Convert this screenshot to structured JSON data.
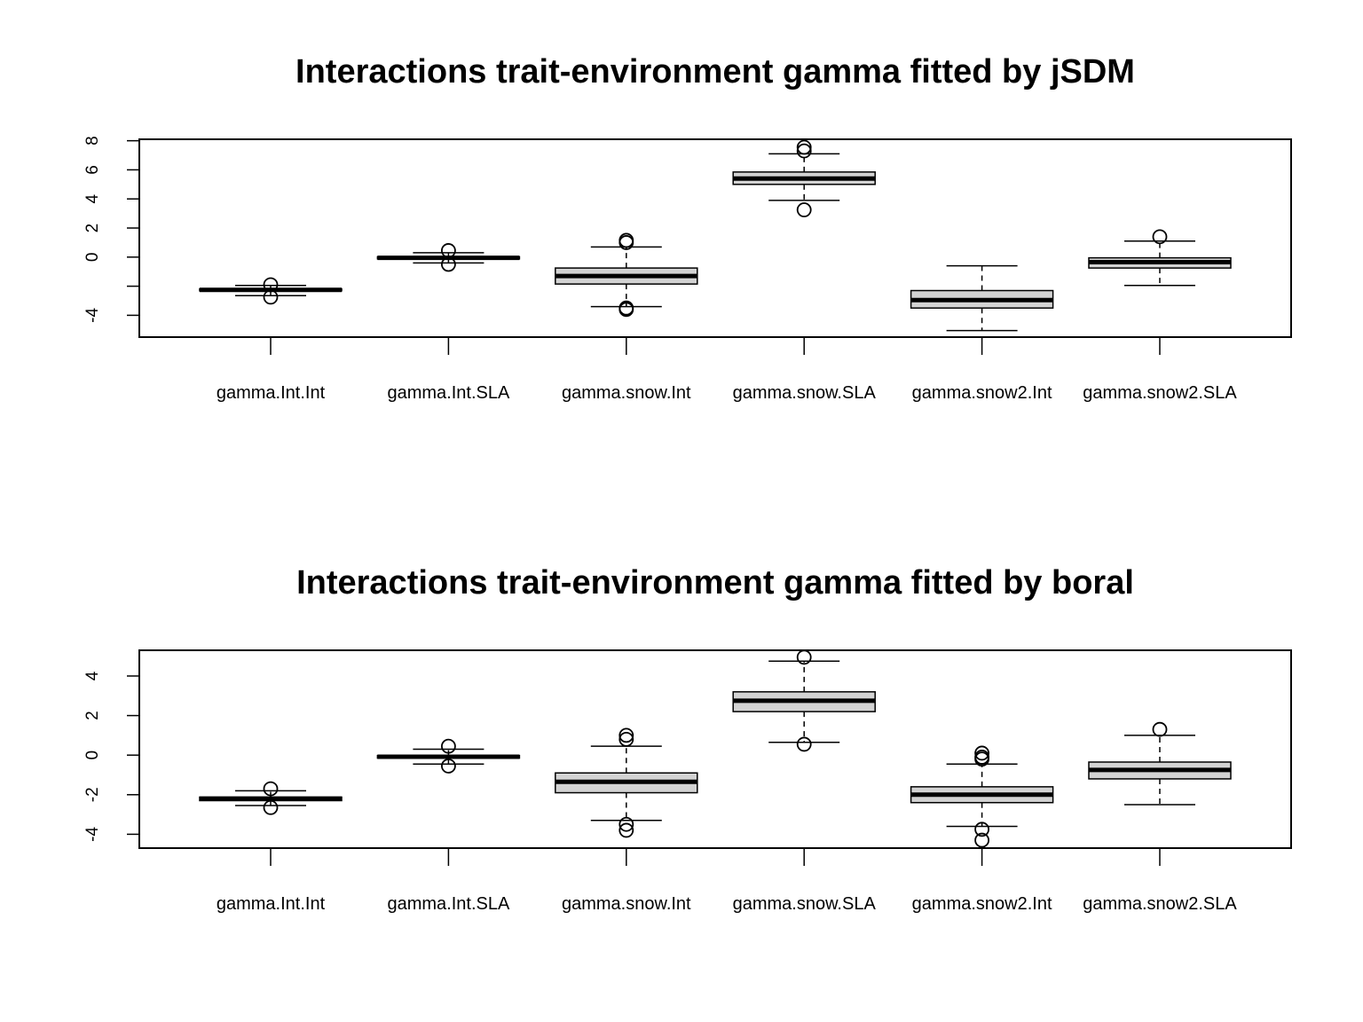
{
  "chart_data": [
    {
      "type": "box",
      "title": "Interactions trait-environment gamma fitted by jSDM",
      "xlabel": "",
      "ylabel": "",
      "categories": [
        "gamma.Int.Int",
        "gamma.Int.SLA",
        "gamma.snow.Int",
        "gamma.snow.SLA",
        "gamma.snow2.Int",
        "gamma.snow2.SLA"
      ],
      "ylim": [
        -5.5,
        8.1
      ],
      "yticks": [
        -4,
        -2,
        0,
        2,
        4,
        6,
        8
      ],
      "ytick_labels": [
        "-4",
        "",
        "0",
        "2",
        "4",
        "6",
        "8"
      ],
      "grid": false,
      "boxes": [
        {
          "whisker_low": -2.65,
          "q1": -2.32,
          "median": -2.25,
          "q3": -2.18,
          "whisker_high": -1.95,
          "outliers": [
            -1.9,
            -2.75
          ]
        },
        {
          "whisker_low": -0.4,
          "q1": -0.12,
          "median": -0.05,
          "q3": 0.02,
          "whisker_high": 0.3,
          "outliers": [
            0.45,
            -0.5
          ]
        },
        {
          "whisker_low": -3.4,
          "q1": -1.85,
          "median": -1.3,
          "q3": -0.75,
          "whisker_high": 0.7,
          "outliers": [
            1.0,
            1.15,
            -3.5,
            -3.6
          ]
        },
        {
          "whisker_low": 3.9,
          "q1": 5.0,
          "median": 5.4,
          "q3": 5.85,
          "whisker_high": 7.1,
          "outliers": [
            7.3,
            7.55,
            3.25
          ]
        },
        {
          "whisker_low": -5.05,
          "q1": -3.5,
          "median": -2.95,
          "q3": -2.3,
          "whisker_high": -0.6,
          "outliers": []
        },
        {
          "whisker_low": -1.95,
          "q1": -0.75,
          "median": -0.35,
          "q3": -0.05,
          "whisker_high": 1.1,
          "outliers": [
            1.4
          ]
        }
      ]
    },
    {
      "type": "box",
      "title": "Interactions trait-environment gamma fitted by boral",
      "xlabel": "",
      "ylabel": "",
      "categories": [
        "gamma.Int.Int",
        "gamma.Int.SLA",
        "gamma.snow.Int",
        "gamma.snow.SLA",
        "gamma.snow2.Int",
        "gamma.snow2.SLA"
      ],
      "ylim": [
        -4.7,
        5.3
      ],
      "yticks": [
        -4,
        -2,
        0,
        2,
        4
      ],
      "ytick_labels": [
        "-4",
        "-2",
        "0",
        "2",
        "4"
      ],
      "grid": false,
      "boxes": [
        {
          "whisker_low": -2.55,
          "q1": -2.3,
          "median": -2.2,
          "q3": -2.12,
          "whisker_high": -1.8,
          "outliers": [
            -1.7,
            -2.65
          ]
        },
        {
          "whisker_low": -0.45,
          "q1": -0.15,
          "median": -0.08,
          "q3": -0.02,
          "whisker_high": 0.3,
          "outliers": [
            0.45,
            -0.55
          ]
        },
        {
          "whisker_low": -3.3,
          "q1": -1.9,
          "median": -1.35,
          "q3": -0.9,
          "whisker_high": 0.45,
          "outliers": [
            0.8,
            1.0,
            -3.5,
            -3.8
          ]
        },
        {
          "whisker_low": 0.65,
          "q1": 2.2,
          "median": 2.75,
          "q3": 3.2,
          "whisker_high": 4.75,
          "outliers": [
            4.95,
            0.55
          ]
        },
        {
          "whisker_low": -3.6,
          "q1": -2.4,
          "median": -2.0,
          "q3": -1.6,
          "whisker_high": -0.45,
          "outliers": [
            0.1,
            -0.1,
            -0.2,
            -3.75,
            -4.3
          ]
        },
        {
          "whisker_low": -2.5,
          "q1": -1.2,
          "median": -0.75,
          "q3": -0.35,
          "whisker_high": 1.0,
          "outliers": [
            1.3
          ]
        }
      ]
    }
  ],
  "colors": {
    "box_fill": "#d3d3d3",
    "stroke": "#000000",
    "background": "#ffffff"
  }
}
